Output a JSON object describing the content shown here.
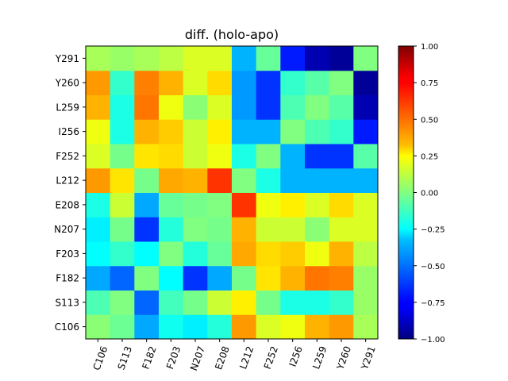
{
  "chart_data": {
    "type": "heatmap",
    "title": "diff. (holo-apo)",
    "x_categories": [
      "C106",
      "S113",
      "F182",
      "F203",
      "N207",
      "E208",
      "L212",
      "F252",
      "I256",
      "L259",
      "Y260",
      "Y291"
    ],
    "y_categories": [
      "C106",
      "S113",
      "F182",
      "F203",
      "N207",
      "E208",
      "L212",
      "F252",
      "I256",
      "L259",
      "Y260",
      "Y291"
    ],
    "values": [
      [
        0.02,
        -0.04,
        -0.42,
        -0.22,
        -0.28,
        -0.18,
        0.45,
        0.18,
        0.22,
        0.4,
        0.45,
        0.08
      ],
      [
        -0.1,
        0.0,
        -0.55,
        -0.12,
        -0.02,
        0.15,
        0.28,
        -0.02,
        -0.2,
        -0.2,
        -0.15,
        0.05
      ],
      [
        -0.42,
        -0.55,
        0.0,
        -0.25,
        -0.65,
        -0.42,
        -0.02,
        0.3,
        0.4,
        0.52,
        0.5,
        0.05
      ],
      [
        -0.25,
        -0.15,
        -0.25,
        0.0,
        -0.18,
        -0.05,
        0.42,
        0.32,
        0.35,
        0.22,
        0.4,
        0.12
      ],
      [
        -0.28,
        -0.02,
        -0.65,
        -0.18,
        0.0,
        -0.02,
        0.4,
        0.15,
        0.15,
        0.02,
        0.18,
        0.18
      ],
      [
        -0.2,
        0.15,
        -0.42,
        -0.05,
        -0.02,
        0.0,
        0.65,
        0.22,
        0.28,
        0.18,
        0.32,
        0.18
      ],
      [
        0.45,
        0.3,
        -0.02,
        0.42,
        0.4,
        0.65,
        0.0,
        -0.2,
        -0.4,
        -0.4,
        -0.4,
        -0.4
      ],
      [
        0.18,
        -0.02,
        0.3,
        0.32,
        0.15,
        0.22,
        -0.2,
        0.0,
        -0.4,
        -0.65,
        -0.65,
        -0.08
      ],
      [
        0.22,
        -0.2,
        0.4,
        0.35,
        0.15,
        0.28,
        -0.4,
        -0.4,
        0.0,
        -0.1,
        -0.15,
        -0.7
      ],
      [
        0.4,
        -0.2,
        0.52,
        0.22,
        0.02,
        0.18,
        -0.45,
        -0.65,
        -0.1,
        0.0,
        -0.08,
        -0.9
      ],
      [
        0.45,
        -0.15,
        0.5,
        0.4,
        0.18,
        0.32,
        -0.45,
        -0.65,
        -0.15,
        -0.08,
        0.0,
        -0.95
      ],
      [
        0.08,
        0.05,
        0.08,
        0.12,
        0.18,
        0.18,
        -0.4,
        -0.05,
        -0.7,
        -0.9,
        -0.95,
        0.0
      ]
    ],
    "y_order": "bottom-to-top",
    "colormap": "jet",
    "vmin": -1.0,
    "vmax": 1.0,
    "colorbar_ticks": [
      "1.00",
      "0.75",
      "0.50",
      "0.25",
      "0.00",
      "−0.25",
      "−0.50",
      "−0.75",
      "−1.00"
    ],
    "colorbar_tick_values": [
      1.0,
      0.75,
      0.5,
      0.25,
      0.0,
      -0.25,
      -0.5,
      -0.75,
      -1.0
    ],
    "x_tick_rotation": 70,
    "grid": false
  }
}
